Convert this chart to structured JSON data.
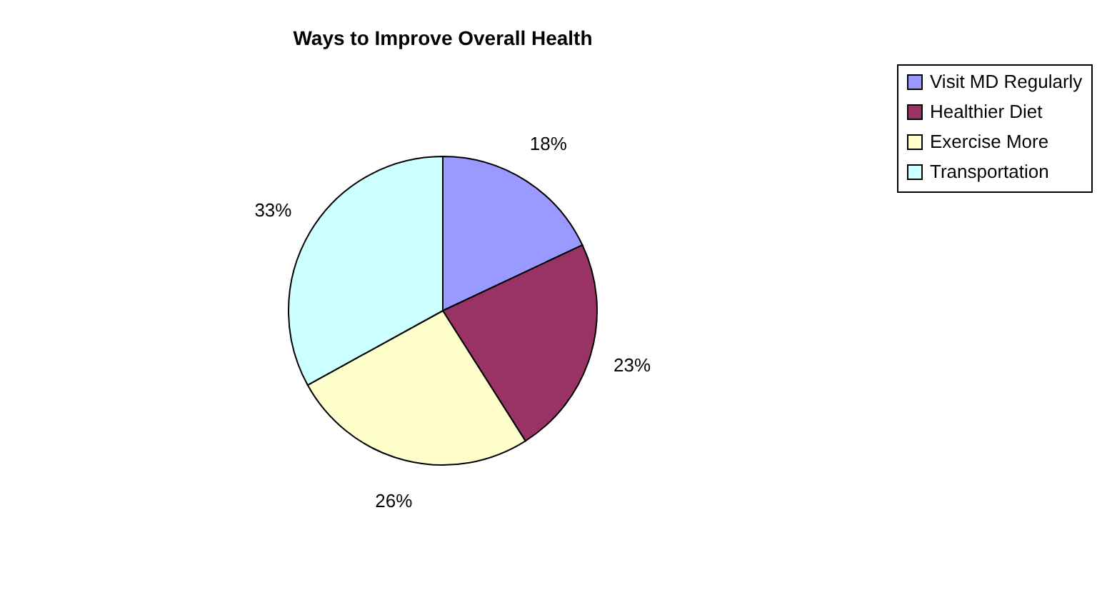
{
  "chart_data": {
    "type": "pie",
    "title": "Ways to Improve Overall Health",
    "categories": [
      "Visit MD Regularly",
      "Healthier Diet",
      "Exercise More",
      "Transportation"
    ],
    "values": [
      18,
      23,
      26,
      33
    ],
    "colors": [
      "#9999ff",
      "#993366",
      "#ffffcc",
      "#ccffff"
    ],
    "value_labels": [
      "18%",
      "23%",
      "26%",
      "33%"
    ],
    "legend": "right"
  }
}
